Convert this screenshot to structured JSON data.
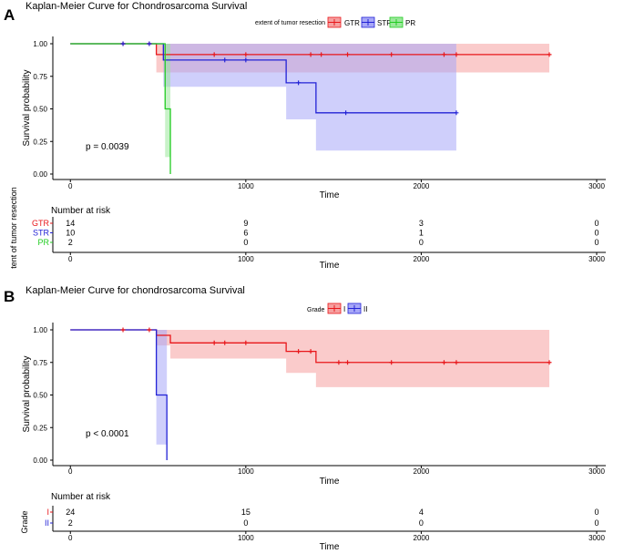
{
  "panels": [
    {
      "letter": "A",
      "title": "Kaplan-Meier Curve for Chondrosarcoma Survival",
      "legend_title": "extent of tumor resection",
      "pvalue": "p = 0.0039",
      "risk_title": "Number at risk",
      "risk_axis_label": "tent of tumor resection",
      "risk_rows": [
        {
          "label": "GTR",
          "color": "#e8171b",
          "counts": [
            "14",
            "9",
            "3",
            "0"
          ]
        },
        {
          "label": "STR",
          "color": "#2323d6",
          "counts": [
            "10",
            "6",
            "1",
            "0"
          ]
        },
        {
          "label": "PR",
          "color": "#22cc22",
          "counts": [
            "2",
            "0",
            "0",
            "0"
          ]
        }
      ]
    },
    {
      "letter": "B",
      "title": "Kaplan-Meier Curve for chondrosarcoma Survival",
      "legend_title": "Grade",
      "pvalue": "p < 0.0001",
      "risk_title": "Number at risk",
      "risk_axis_label": "Grade",
      "risk_rows": [
        {
          "label": "I",
          "color": "#e8171b",
          "counts": [
            "24",
            "15",
            "4",
            "0"
          ]
        },
        {
          "label": "II",
          "color": "#2323d6",
          "counts": [
            "2",
            "0",
            "0",
            "0"
          ]
        }
      ]
    }
  ],
  "chart_data": [
    {
      "type": "line",
      "subtype": "kaplan-meier",
      "title": "Kaplan-Meier Curve for Chondrosarcoma Survival",
      "xlabel": "Time",
      "ylabel": "Survival probability",
      "xlim": [
        -100,
        3000
      ],
      "ylim": [
        0,
        1
      ],
      "x_ticks": [
        "0",
        "1000",
        "2000",
        "3000"
      ],
      "y_ticks": [
        "0.00",
        "0.25",
        "0.50",
        "0.75",
        "1.00"
      ],
      "legend_position": "top",
      "series": [
        {
          "name": "GTR",
          "color": "#e8171b",
          "fill": "#f6a0a0",
          "steps": [
            [
              0,
              1.0
            ],
            [
              490,
              0.917
            ],
            [
              2730,
              0.917
            ]
          ],
          "ci": [
            [
              0,
              1.0,
              1.0
            ],
            [
              490,
              1.0,
              0.78
            ],
            [
              2730,
              1.0,
              0.78
            ]
          ],
          "censor": [
            [
              300,
              1.0
            ],
            [
              450,
              1.0
            ],
            [
              820,
              0.917
            ],
            [
              1000,
              0.917
            ],
            [
              1370,
              0.917
            ],
            [
              1430,
              0.917
            ],
            [
              1580,
              0.917
            ],
            [
              1830,
              0.917
            ],
            [
              2130,
              0.917
            ],
            [
              2200,
              0.917
            ],
            [
              2730,
              0.917
            ]
          ]
        },
        {
          "name": "STR",
          "color": "#2323d6",
          "fill": "#a7a7f7",
          "steps": [
            [
              0,
              1.0
            ],
            [
              530,
              0.875
            ],
            [
              1230,
              0.7
            ],
            [
              1400,
              0.47
            ],
            [
              2200,
              0.47
            ]
          ],
          "ci": [
            [
              0,
              1.0,
              1.0
            ],
            [
              530,
              1.0,
              0.67
            ],
            [
              1230,
              1.0,
              0.42
            ],
            [
              1400,
              1.0,
              0.18
            ],
            [
              2200,
              1.0,
              0.18
            ]
          ],
          "censor": [
            [
              300,
              1.0
            ],
            [
              450,
              1.0
            ],
            [
              880,
              0.875
            ],
            [
              1000,
              0.875
            ],
            [
              1300,
              0.7
            ],
            [
              1570,
              0.47
            ],
            [
              2200,
              0.47
            ]
          ]
        },
        {
          "name": "PR",
          "color": "#22cc22",
          "fill": "#9be89b",
          "steps": [
            [
              0,
              1.0
            ],
            [
              540,
              0.5
            ],
            [
              570,
              0.0
            ]
          ],
          "ci": [
            [
              0,
              1.0,
              1.0
            ],
            [
              540,
              1.0,
              0.13
            ],
            [
              570,
              0.0,
              0.0
            ]
          ],
          "censor": []
        }
      ]
    },
    {
      "type": "line",
      "subtype": "kaplan-meier",
      "title": "Kaplan-Meier Curve for chondrosarcoma Survival",
      "xlabel": "Time",
      "ylabel": "Survival probability",
      "xlim": [
        -100,
        3000
      ],
      "ylim": [
        0,
        1
      ],
      "x_ticks": [
        "0",
        "1000",
        "2000",
        "3000"
      ],
      "y_ticks": [
        "0.00",
        "0.25",
        "0.50",
        "0.75",
        "1.00"
      ],
      "legend_position": "top",
      "series": [
        {
          "name": "I",
          "color": "#e8171b",
          "fill": "#f6a0a0",
          "steps": [
            [
              0,
              1.0
            ],
            [
              490,
              0.958
            ],
            [
              570,
              0.9
            ],
            [
              1230,
              0.835
            ],
            [
              1400,
              0.75
            ],
            [
              2730,
              0.75
            ]
          ],
          "ci": [
            [
              0,
              1.0,
              1.0
            ],
            [
              490,
              1.0,
              0.88
            ],
            [
              570,
              1.0,
              0.78
            ],
            [
              1230,
              1.0,
              0.67
            ],
            [
              1400,
              1.0,
              0.56
            ],
            [
              2730,
              1.0,
              0.56
            ]
          ],
          "censor": [
            [
              300,
              1.0
            ],
            [
              450,
              1.0
            ],
            [
              820,
              0.9
            ],
            [
              880,
              0.9
            ],
            [
              1000,
              0.9
            ],
            [
              1300,
              0.835
            ],
            [
              1370,
              0.835
            ],
            [
              1530,
              0.75
            ],
            [
              1580,
              0.75
            ],
            [
              1830,
              0.75
            ],
            [
              2130,
              0.75
            ],
            [
              2200,
              0.75
            ],
            [
              2730,
              0.75
            ]
          ]
        },
        {
          "name": "II",
          "color": "#2323d6",
          "fill": "#a7a7f7",
          "steps": [
            [
              0,
              1.0
            ],
            [
              490,
              0.5
            ],
            [
              550,
              0.0
            ]
          ],
          "ci": [
            [
              0,
              1.0,
              1.0
            ],
            [
              490,
              1.0,
              0.12
            ],
            [
              550,
              0.0,
              0.0
            ]
          ],
          "censor": []
        }
      ]
    }
  ]
}
